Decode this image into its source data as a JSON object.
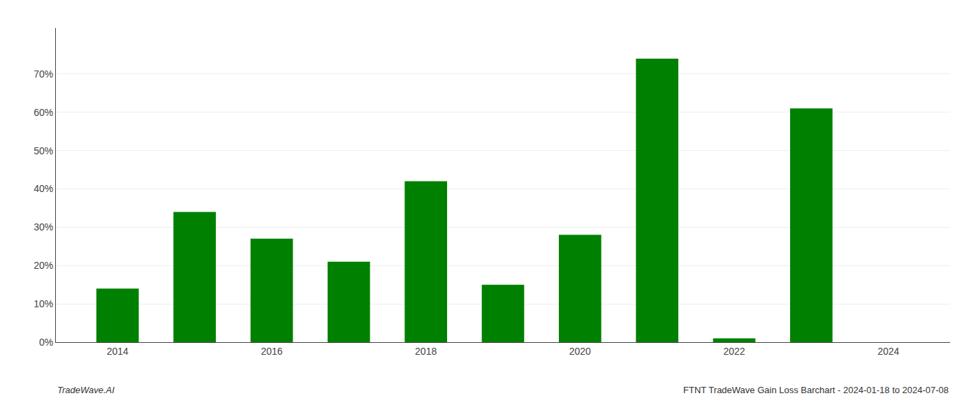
{
  "chart_data": {
    "type": "bar",
    "x": [
      2014,
      2015,
      2016,
      2017,
      2018,
      2019,
      2020,
      2021,
      2022,
      2023
    ],
    "values": [
      0.14,
      0.34,
      0.27,
      0.21,
      0.42,
      0.15,
      0.28,
      0.74,
      0.01,
      0.61
    ],
    "color": "#008000",
    "xlim": [
      2013.2,
      2024.8
    ],
    "xticks": [
      2014,
      2016,
      2018,
      2020,
      2022,
      2024
    ],
    "ylim": [
      0,
      0.82
    ],
    "yticks": [
      {
        "value": 0.0,
        "label": "0%"
      },
      {
        "value": 0.1,
        "label": "10%"
      },
      {
        "value": 0.2,
        "label": "20%"
      },
      {
        "value": 0.3,
        "label": "30%"
      },
      {
        "value": 0.4,
        "label": "40%"
      },
      {
        "value": 0.5,
        "label": "50%"
      },
      {
        "value": 0.6,
        "label": "60%"
      },
      {
        "value": 0.7,
        "label": "70%"
      }
    ],
    "grid": "y",
    "annotations": [
      "TradeWave.AI",
      "FTNT TradeWave Gain Loss Barchart - 2024-01-18 to 2024-07-08"
    ]
  }
}
